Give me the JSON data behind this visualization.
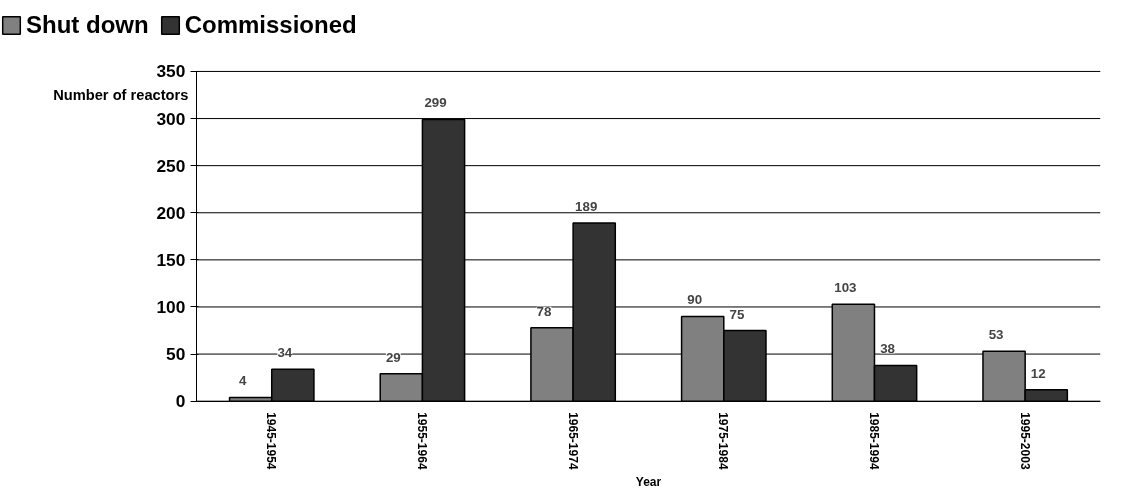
{
  "chart_data": {
    "type": "bar",
    "categories": [
      "1945-1954",
      "1955-1964",
      "1965-1974",
      "1975-1984",
      "1985-1994",
      "1995-2003"
    ],
    "series": [
      {
        "name": "Shut down",
        "color": "#808080",
        "values": [
          4,
          29,
          78,
          90,
          103,
          53
        ]
      },
      {
        "name": "Commissioned",
        "color": "#333333",
        "values": [
          34,
          299,
          189,
          75,
          38,
          12
        ]
      }
    ],
    "xlabel": "Year",
    "ylabel": "Number of reactors",
    "ylim": [
      0,
      350
    ],
    "yticks": [
      0,
      50,
      100,
      150,
      200,
      250,
      300,
      350
    ],
    "grid": "y",
    "legend": "top left",
    "data_labels": true
  }
}
